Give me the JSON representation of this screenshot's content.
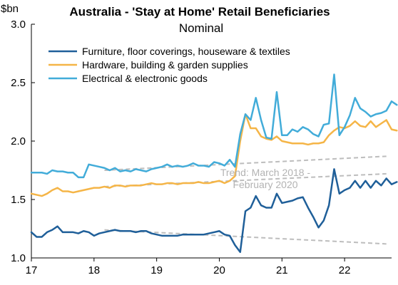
{
  "chart_data": {
    "type": "line",
    "title": "Australia - 'Stay at Home' Retail Beneficiaries",
    "subtitle": "Nominal",
    "unit_label": "$bn",
    "y_ticks": [
      "1.0",
      "1.5",
      "2.0",
      "2.5",
      "3.0"
    ],
    "x_ticks": [
      "17",
      "18",
      "19",
      "20",
      "21",
      "22"
    ],
    "ylim": [
      1.0,
      3.0
    ],
    "x_range": [
      "2017-01",
      "2022-09"
    ],
    "grid": false,
    "legend_position": "top-left",
    "series": [
      {
        "name": "Furniture, floor coverings, houseware & textiles",
        "color": "#1f5f99",
        "start": "2017-01",
        "values": [
          1.22,
          1.18,
          1.18,
          1.22,
          1.24,
          1.27,
          1.22,
          1.22,
          1.22,
          1.21,
          1.23,
          1.22,
          1.19,
          1.21,
          1.22,
          1.23,
          1.24,
          1.23,
          1.23,
          1.23,
          1.22,
          1.23,
          1.23,
          1.21,
          1.2,
          1.19,
          1.19,
          1.19,
          1.19,
          1.2,
          1.2,
          1.2,
          1.2,
          1.2,
          1.21,
          1.22,
          1.23,
          1.2,
          1.19,
          1.11,
          1.05,
          1.4,
          1.43,
          1.53,
          1.45,
          1.43,
          1.43,
          1.55,
          1.47,
          1.48,
          1.49,
          1.51,
          1.52,
          1.43,
          1.35,
          1.26,
          1.32,
          1.45,
          1.76,
          1.55,
          1.58,
          1.6,
          1.66,
          1.6,
          1.66,
          1.6,
          1.66,
          1.62,
          1.68,
          1.63,
          1.65
        ]
      },
      {
        "name": "Hardware, building & garden supplies",
        "color": "#f5b547",
        "start": "2017-01",
        "values": [
          1.55,
          1.54,
          1.53,
          1.55,
          1.58,
          1.6,
          1.57,
          1.57,
          1.56,
          1.57,
          1.58,
          1.59,
          1.6,
          1.6,
          1.61,
          1.6,
          1.62,
          1.62,
          1.61,
          1.62,
          1.62,
          1.62,
          1.63,
          1.64,
          1.63,
          1.63,
          1.64,
          1.64,
          1.63,
          1.64,
          1.64,
          1.64,
          1.65,
          1.64,
          1.64,
          1.65,
          1.66,
          1.64,
          1.66,
          1.7,
          2.0,
          2.23,
          2.11,
          2.11,
          2.04,
          2.02,
          2.01,
          2.04,
          2.0,
          1.99,
          1.98,
          1.98,
          1.98,
          1.97,
          1.98,
          1.98,
          1.99,
          2.05,
          2.09,
          2.12,
          2.11,
          2.13,
          2.17,
          2.13,
          2.12,
          2.17,
          2.12,
          2.15,
          2.18,
          2.1,
          2.09
        ]
      },
      {
        "name": "Electrical & electronic goods",
        "color": "#42acd9",
        "start": "2017-01",
        "values": [
          1.73,
          1.73,
          1.73,
          1.72,
          1.75,
          1.74,
          1.74,
          1.73,
          1.73,
          1.69,
          1.69,
          1.8,
          1.79,
          1.78,
          1.77,
          1.75,
          1.77,
          1.74,
          1.75,
          1.74,
          1.76,
          1.75,
          1.74,
          1.76,
          1.77,
          1.78,
          1.8,
          1.78,
          1.79,
          1.78,
          1.79,
          1.81,
          1.79,
          1.79,
          1.78,
          1.82,
          1.81,
          1.79,
          1.84,
          1.78,
          2.06,
          2.23,
          2.18,
          2.37,
          2.18,
          2.03,
          2.02,
          2.42,
          2.05,
          2.05,
          2.1,
          2.08,
          2.12,
          2.1,
          2.06,
          2.04,
          2.14,
          2.15,
          2.57,
          2.05,
          2.12,
          2.22,
          2.37,
          2.28,
          2.25,
          2.21,
          2.23,
          2.24,
          2.26,
          2.34,
          2.31
        ]
      }
    ],
    "trend_label": "Trend: March 2018 -\nFebruary 2020",
    "trend_lines": [
      {
        "series": "Furniture, floor coverings, houseware & textiles",
        "from": [
          "2018-03",
          1.24
        ],
        "to": [
          "2022-09",
          1.12
        ]
      },
      {
        "series": "Hardware, building & garden supplies",
        "from": [
          "2018-03",
          1.61
        ],
        "to": [
          "2022-09",
          1.72
        ]
      },
      {
        "series": "Electrical & electronic goods",
        "from": [
          "2018-03",
          1.75
        ],
        "to": [
          "2022-09",
          1.87
        ]
      }
    ]
  }
}
